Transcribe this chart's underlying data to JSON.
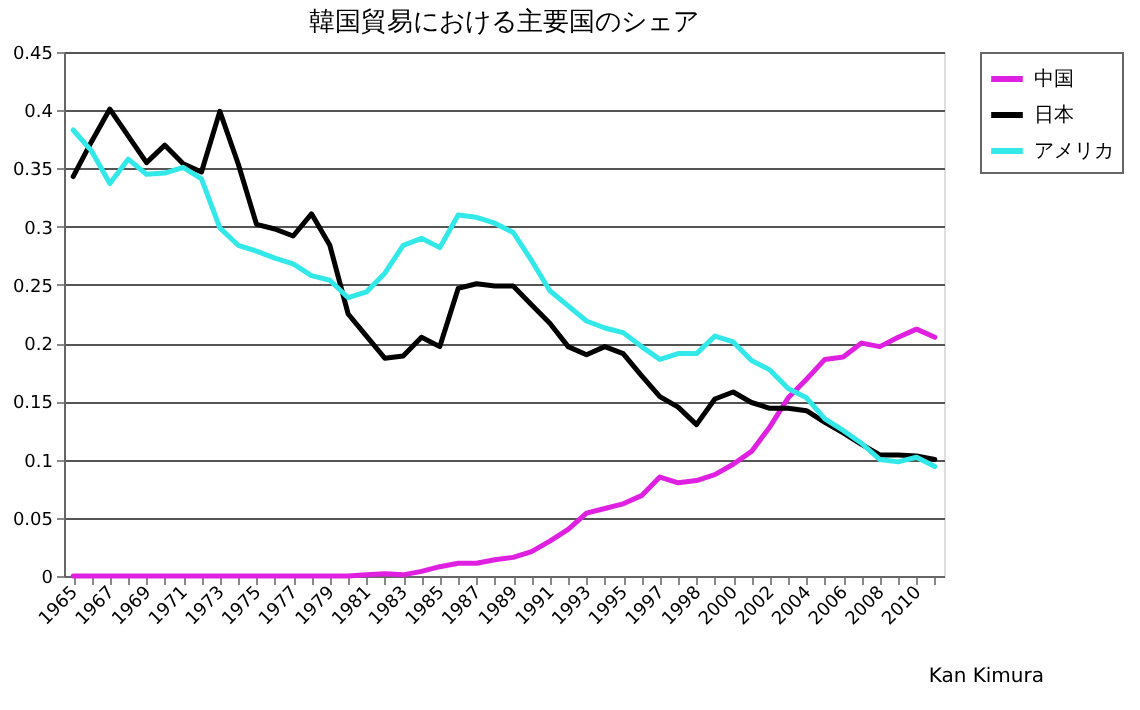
{
  "chart_data": {
    "type": "line",
    "title": "韓国貿易における主要国のシェア",
    "categories": [
      "1965",
      null,
      "1967",
      null,
      "1969",
      null,
      "1971",
      null,
      "1973",
      null,
      "1975",
      null,
      "1977",
      null,
      "1979",
      null,
      "1981",
      null,
      "1983",
      null,
      "1985",
      null,
      "1987",
      null,
      "1989",
      null,
      "1991",
      null,
      "1993",
      null,
      "1995",
      null,
      "1997",
      null,
      "1998",
      null,
      "2000",
      null,
      "2002",
      null,
      "2004",
      null,
      "2006",
      null,
      "2008",
      null,
      "2010",
      null
    ],
    "series": [
      {
        "name": "中国",
        "color": "#e020e0",
        "values": [
          0,
          0,
          0,
          0,
          0,
          0,
          0,
          0,
          0,
          0,
          0,
          0,
          0,
          0,
          0,
          0,
          0.001,
          0.002,
          0.001,
          0.004,
          0.008,
          0.011,
          0.011,
          0.014,
          0.016,
          0.021,
          0.03,
          0.04,
          0.054,
          0.058,
          0.062,
          0.069,
          0.085,
          0.08,
          0.082,
          0.087,
          0.096,
          0.107,
          0.128,
          0.153,
          0.169,
          0.186,
          0.188,
          0.2,
          0.197,
          0.205,
          0.212,
          0.205
        ]
      },
      {
        "name": "日本",
        "color": "#000000",
        "values": [
          0.343,
          0.373,
          0.401,
          0.378,
          0.355,
          0.37,
          0.354,
          0.347,
          0.399,
          0.354,
          0.302,
          0.298,
          0.292,
          0.311,
          0.284,
          0.225,
          0.206,
          0.187,
          0.189,
          0.205,
          0.197,
          0.247,
          0.251,
          0.249,
          0.249,
          0.233,
          0.217,
          0.197,
          0.19,
          0.197,
          0.191,
          0.172,
          0.154,
          0.145,
          0.13,
          0.152,
          0.158,
          0.149,
          0.144,
          0.144,
          0.142,
          0.132,
          0.123,
          0.113,
          0.104,
          0.104,
          0.103,
          0.1
        ]
      },
      {
        "name": "アメリカ",
        "color": "#33e8e8",
        "values": [
          0.383,
          0.365,
          0.337,
          0.358,
          0.345,
          0.346,
          0.351,
          0.341,
          0.299,
          0.284,
          0.279,
          0.273,
          0.268,
          0.258,
          0.254,
          0.239,
          0.244,
          0.26,
          0.284,
          0.29,
          0.282,
          0.31,
          0.308,
          0.303,
          0.295,
          0.271,
          0.245,
          0.232,
          0.219,
          0.213,
          0.209,
          0.197,
          0.186,
          0.191,
          0.191,
          0.206,
          0.201,
          0.185,
          0.177,
          0.161,
          0.153,
          0.135,
          0.125,
          0.114,
          0.1,
          0.098,
          0.102,
          0.094
        ]
      }
    ],
    "ylim": [
      0,
      0.45
    ],
    "yticks": [
      0,
      0.05,
      0.1,
      0.15,
      0.2,
      0.25,
      0.3,
      0.35,
      0.4,
      0.45
    ],
    "grid": "y",
    "legend": "right",
    "marker": "none",
    "line_style": "solid",
    "annotations": [
      "Kan Kimura"
    ]
  }
}
